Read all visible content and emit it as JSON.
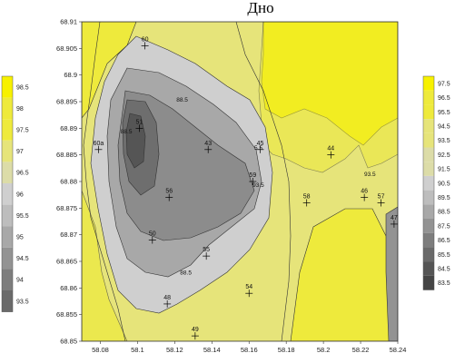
{
  "title": "Дно",
  "colors": {
    "c98": "#f7f100",
    "c97": "#eeea3c",
    "c96": "#e6e47a",
    "c95": "#dcdca8",
    "c94": "#cfcfcf",
    "c93": "#bdbdbd",
    "c92": "#a8a8a8",
    "c91": "#939393",
    "c90": "#7d7d7d",
    "c89": "#6a6a6a",
    "c88": "#555555",
    "c87": "#454545"
  },
  "axis": {
    "x_ticks": [
      "58.08",
      "58.1",
      "58.12",
      "58.14",
      "58.16",
      "58.18",
      "58.2",
      "58.22",
      "58.24"
    ],
    "y_ticks": [
      "68.91",
      "68.905",
      "68.9",
      "68.895",
      "68.89",
      "68.885",
      "68.88",
      "68.875",
      "68.87",
      "68.865",
      "68.86",
      "68.855",
      "68.85"
    ],
    "xlim": [
      58.07,
      58.24
    ],
    "ylim": [
      68.85,
      68.91
    ]
  },
  "points": [
    {
      "id": "60",
      "x": 58.104,
      "y": 68.9055
    },
    {
      "id": "60a",
      "x": 58.079,
      "y": 68.886
    },
    {
      "id": "51",
      "x": 58.101,
      "y": 68.89
    },
    {
      "id": "43",
      "x": 58.138,
      "y": 68.886
    },
    {
      "id": "45",
      "x": 58.166,
      "y": 68.886
    },
    {
      "id": "44",
      "x": 58.204,
      "y": 68.885
    },
    {
      "id": "59",
      "x": 58.162,
      "y": 68.88
    },
    {
      "id": "56",
      "x": 58.117,
      "y": 68.877
    },
    {
      "id": "58",
      "x": 58.191,
      "y": 68.876
    },
    {
      "id": "46",
      "x": 58.222,
      "y": 68.877
    },
    {
      "id": "57",
      "x": 58.231,
      "y": 68.876
    },
    {
      "id": "47",
      "x": 58.238,
      "y": 68.872
    },
    {
      "id": "50",
      "x": 58.108,
      "y": 68.869
    },
    {
      "id": "55",
      "x": 58.137,
      "y": 68.866
    },
    {
      "id": "48",
      "x": 58.116,
      "y": 68.857
    },
    {
      "id": "54",
      "x": 58.16,
      "y": 68.859
    },
    {
      "id": "49",
      "x": 58.131,
      "y": 68.851
    }
  ],
  "contour_labels": [
    {
      "text": "88.5",
      "x": 58.094,
      "y": 68.889
    },
    {
      "text": "88.5",
      "x": 58.124,
      "y": 68.895
    },
    {
      "text": "88.5",
      "x": 58.126,
      "y": 68.8625
    },
    {
      "text": "5.5",
      "x": 58.165,
      "y": 68.886
    },
    {
      "text": "93.5",
      "x": 58.165,
      "y": 68.879
    },
    {
      "text": "93.5",
      "x": 58.225,
      "y": 68.881
    }
  ],
  "legend_left": [
    "98.5",
    "98",
    "97.5",
    "97",
    "96.5",
    "96",
    "95.5",
    "95",
    "94.5",
    "94",
    "93.5"
  ],
  "legend_right": [
    "97.5",
    "96.5",
    "95.5",
    "94.5",
    "93.5",
    "92.5",
    "91.5",
    "90.5",
    "89.5",
    "88.5",
    "87.5",
    "86.5",
    "85.5",
    "84.5",
    "83.5"
  ]
}
